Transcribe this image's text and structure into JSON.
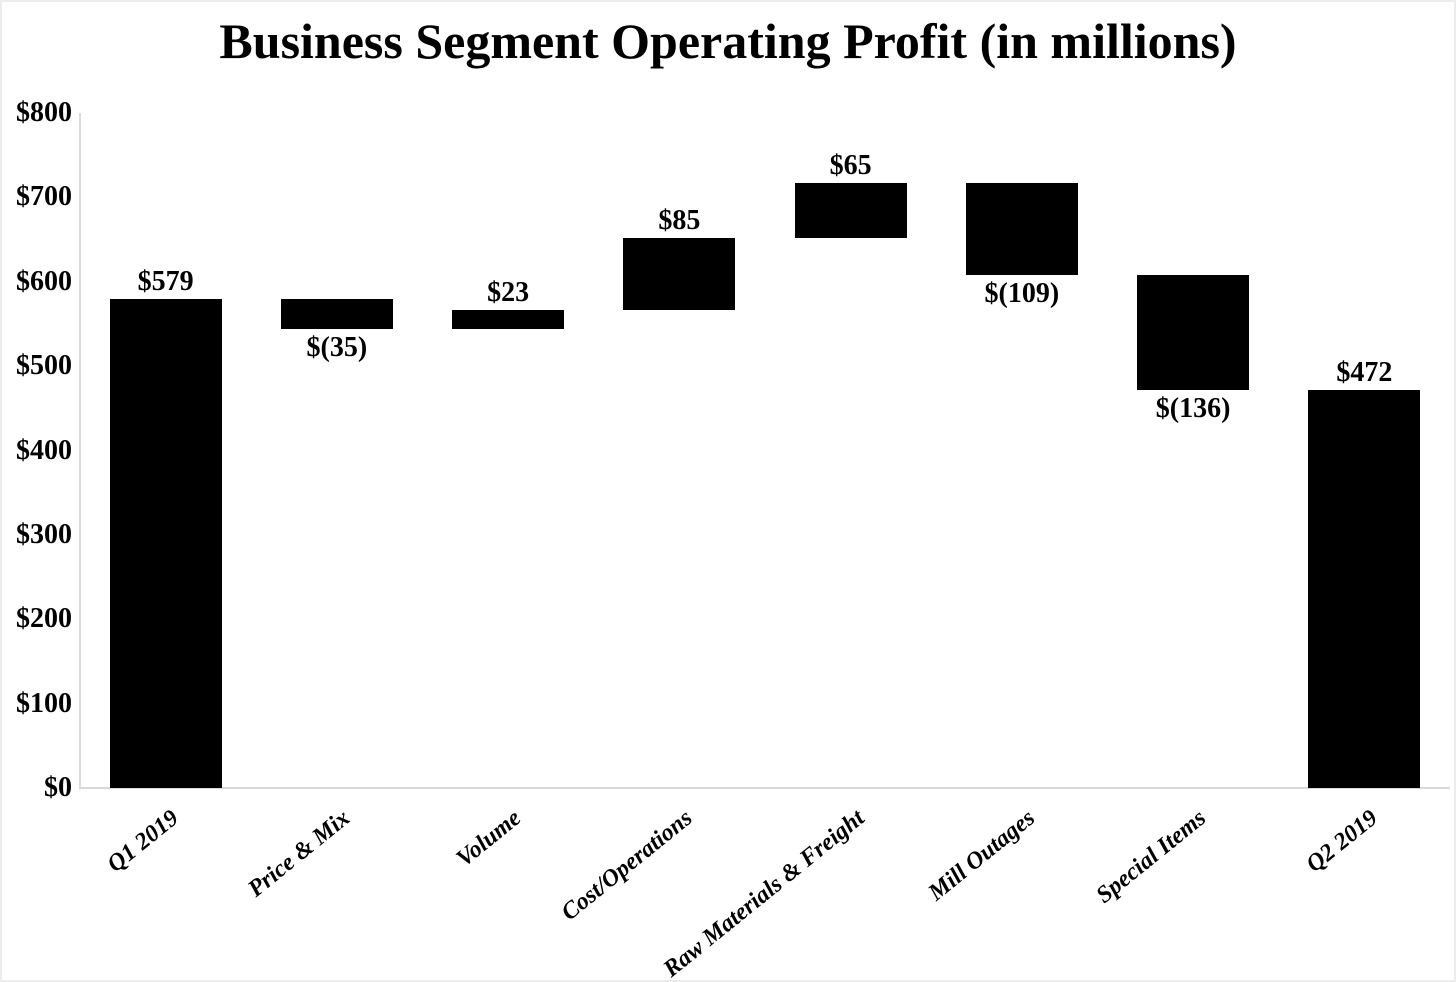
{
  "chart_data": {
    "type": "waterfall",
    "title": "Business Segment Operating Profit (in millions)",
    "categories": [
      "Q1 2019",
      "Price & Mix",
      "Volume",
      "Cost/Operations",
      "Raw Materials & Freight",
      "Mill Outages",
      "Special Items",
      "Q2 2019"
    ],
    "values": [
      579,
      -35,
      23,
      85,
      65,
      -109,
      -136,
      472
    ],
    "segments": [
      {
        "category": "Q1 2019",
        "start": 0,
        "end": 579,
        "label": "$579",
        "label_pos": "above"
      },
      {
        "category": "Price & Mix",
        "start": 544,
        "end": 579,
        "label": "$(35)",
        "label_pos": "below"
      },
      {
        "category": "Volume",
        "start": 544,
        "end": 567,
        "label": "$23",
        "label_pos": "above"
      },
      {
        "category": "Cost/Operations",
        "start": 567,
        "end": 652,
        "label": "$85",
        "label_pos": "above"
      },
      {
        "category": "Raw Materials & Freight",
        "start": 652,
        "end": 717,
        "label": "$65",
        "label_pos": "above"
      },
      {
        "category": "Mill Outages",
        "start": 608,
        "end": 717,
        "label": "$(109)",
        "label_pos": "below"
      },
      {
        "category": "Special Items",
        "start": 472,
        "end": 608,
        "label": "$(136)",
        "label_pos": "below"
      },
      {
        "category": "Q2 2019",
        "start": 0,
        "end": 472,
        "label": "$472",
        "label_pos": "above"
      }
    ],
    "y_axis": {
      "min": 0,
      "max": 800,
      "tick_values": [
        0,
        100,
        200,
        300,
        400,
        500,
        600,
        700,
        800
      ],
      "tick_labels": [
        "$0",
        "$100",
        "$200",
        "$300",
        "$400",
        "$500",
        "$600",
        "$700",
        "$800"
      ]
    },
    "grid": false,
    "legend": "none",
    "bar_color": "#000000",
    "axis_color": "#d9d9d9",
    "text_color": "#000000",
    "background_color": "#ffffff"
  }
}
